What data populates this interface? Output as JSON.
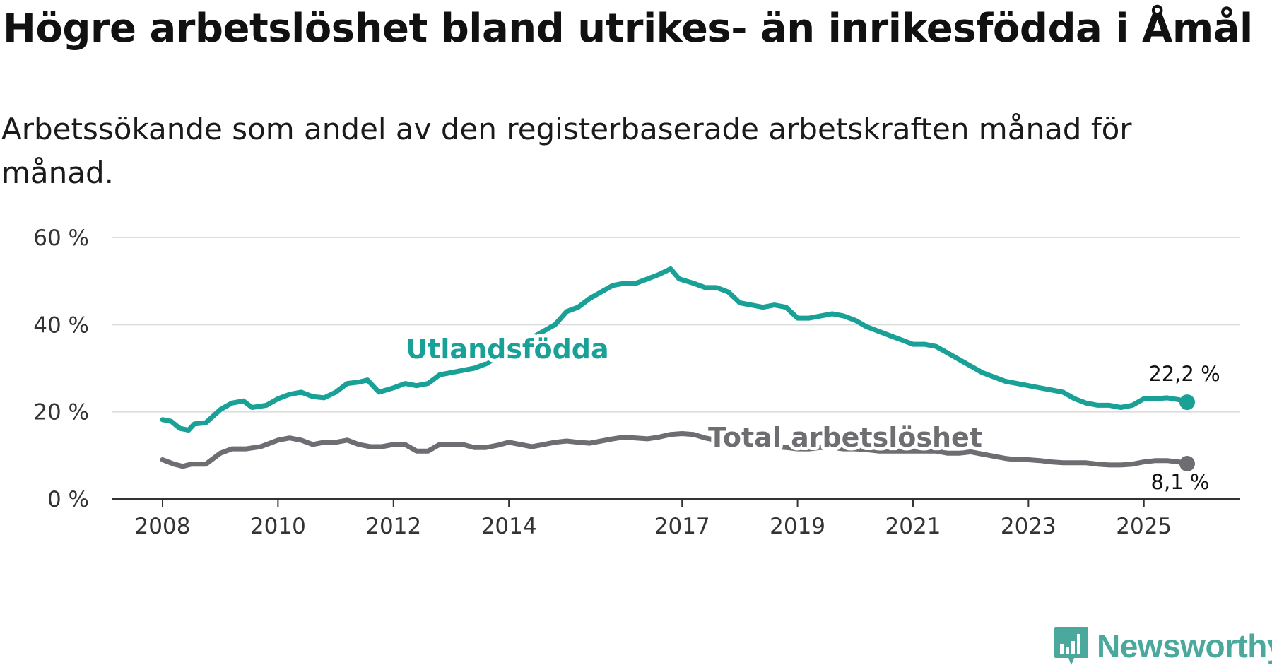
{
  "title": "Högre arbetslöshet bland utrikes- än inrikesfödda i Åmål",
  "subtitle": "Arbetssökande som andel av den registerbaserade arbetskraften månad för månad.",
  "logo": {
    "text": "Newsworthy",
    "icon": "newsworthy-chart-icon"
  },
  "colors": {
    "foreign": "#1aa197",
    "total": "#6e6e72",
    "grid": "#dddddd",
    "axis": "#333333"
  },
  "chart_data": {
    "type": "line",
    "title": "Högre arbetslöshet bland utrikes- än inrikesfödda i Åmål",
    "xlabel": "",
    "ylabel": "",
    "xlim": [
      2007.9,
      2026.5
    ],
    "ylim": [
      0,
      60
    ],
    "grid": true,
    "y_ticks": [
      0,
      20,
      40,
      60
    ],
    "y_tick_labels": [
      "0 %",
      "20 %",
      "40 %",
      "60 %"
    ],
    "x_ticks": [
      2008,
      2010,
      2012,
      2014,
      2017,
      2019,
      2021,
      2023,
      2025
    ],
    "x_tick_labels": [
      "2008",
      "2010",
      "2012",
      "2014",
      "2017",
      "2019",
      "2021",
      "2023",
      "2025"
    ],
    "series": [
      {
        "name": "Utlandsfödda",
        "end_label": "22,2 %",
        "points": [
          [
            2008.0,
            18.2
          ],
          [
            2008.15,
            17.8
          ],
          [
            2008.3,
            16.2
          ],
          [
            2008.45,
            15.8
          ],
          [
            2008.55,
            17.2
          ],
          [
            2008.75,
            17.5
          ],
          [
            2009.0,
            20.5
          ],
          [
            2009.2,
            22.0
          ],
          [
            2009.4,
            22.5
          ],
          [
            2009.55,
            21.0
          ],
          [
            2009.8,
            21.5
          ],
          [
            2010.0,
            23.0
          ],
          [
            2010.2,
            24.0
          ],
          [
            2010.4,
            24.5
          ],
          [
            2010.6,
            23.5
          ],
          [
            2010.8,
            23.2
          ],
          [
            2011.0,
            24.5
          ],
          [
            2011.2,
            26.5
          ],
          [
            2011.4,
            26.8
          ],
          [
            2011.55,
            27.3
          ],
          [
            2011.75,
            24.5
          ],
          [
            2012.0,
            25.5
          ],
          [
            2012.2,
            26.5
          ],
          [
            2012.4,
            26.0
          ],
          [
            2012.6,
            26.5
          ],
          [
            2012.8,
            28.5
          ],
          [
            2013.0,
            29.0
          ],
          [
            2013.2,
            29.5
          ],
          [
            2013.4,
            30.0
          ],
          [
            2013.6,
            31.0
          ],
          [
            2013.8,
            32.5
          ],
          [
            2014.0,
            34.0
          ],
          [
            2014.2,
            35.5
          ],
          [
            2014.4,
            37.0
          ],
          [
            2014.6,
            38.5
          ],
          [
            2014.8,
            40.0
          ],
          [
            2015.0,
            43.0
          ],
          [
            2015.2,
            44.0
          ],
          [
            2015.4,
            46.0
          ],
          [
            2015.6,
            47.5
          ],
          [
            2015.8,
            49.0
          ],
          [
            2016.0,
            49.5
          ],
          [
            2016.2,
            49.5
          ],
          [
            2016.4,
            50.5
          ],
          [
            2016.6,
            51.5
          ],
          [
            2016.8,
            52.8
          ],
          [
            2016.95,
            50.5
          ],
          [
            2017.2,
            49.5
          ],
          [
            2017.4,
            48.5
          ],
          [
            2017.6,
            48.5
          ],
          [
            2017.8,
            47.5
          ],
          [
            2018.0,
            45.0
          ],
          [
            2018.2,
            44.5
          ],
          [
            2018.4,
            44.0
          ],
          [
            2018.6,
            44.5
          ],
          [
            2018.8,
            44.0
          ],
          [
            2019.0,
            41.5
          ],
          [
            2019.2,
            41.5
          ],
          [
            2019.4,
            42.0
          ],
          [
            2019.6,
            42.5
          ],
          [
            2019.8,
            42.0
          ],
          [
            2020.0,
            41.0
          ],
          [
            2020.2,
            39.5
          ],
          [
            2020.4,
            38.5
          ],
          [
            2020.6,
            37.5
          ],
          [
            2020.8,
            36.5
          ],
          [
            2021.0,
            35.5
          ],
          [
            2021.2,
            35.5
          ],
          [
            2021.4,
            35.0
          ],
          [
            2021.6,
            33.5
          ],
          [
            2021.8,
            32.0
          ],
          [
            2022.0,
            30.5
          ],
          [
            2022.2,
            29.0
          ],
          [
            2022.4,
            28.0
          ],
          [
            2022.6,
            27.0
          ],
          [
            2022.8,
            26.5
          ],
          [
            2023.0,
            26.0
          ],
          [
            2023.2,
            25.5
          ],
          [
            2023.4,
            25.0
          ],
          [
            2023.6,
            24.5
          ],
          [
            2023.8,
            23.0
          ],
          [
            2024.0,
            22.0
          ],
          [
            2024.2,
            21.5
          ],
          [
            2024.4,
            21.5
          ],
          [
            2024.6,
            21.0
          ],
          [
            2024.8,
            21.5
          ],
          [
            2025.0,
            23.0
          ],
          [
            2025.2,
            23.0
          ],
          [
            2025.4,
            23.2
          ],
          [
            2025.6,
            22.8
          ],
          [
            2025.75,
            22.2
          ]
        ]
      },
      {
        "name": "Total arbetslöshet",
        "end_label": "8,1 %",
        "points": [
          [
            2008.0,
            9.0
          ],
          [
            2008.2,
            8.0
          ],
          [
            2008.35,
            7.5
          ],
          [
            2008.5,
            8.0
          ],
          [
            2008.75,
            8.0
          ],
          [
            2009.0,
            10.5
          ],
          [
            2009.2,
            11.5
          ],
          [
            2009.45,
            11.5
          ],
          [
            2009.7,
            12.0
          ],
          [
            2010.0,
            13.5
          ],
          [
            2010.2,
            14.0
          ],
          [
            2010.4,
            13.5
          ],
          [
            2010.6,
            12.5
          ],
          [
            2010.8,
            13.0
          ],
          [
            2011.0,
            13.0
          ],
          [
            2011.2,
            13.5
          ],
          [
            2011.4,
            12.5
          ],
          [
            2011.6,
            12.0
          ],
          [
            2011.8,
            12.0
          ],
          [
            2012.0,
            12.5
          ],
          [
            2012.2,
            12.5
          ],
          [
            2012.4,
            11.0
          ],
          [
            2012.6,
            11.0
          ],
          [
            2012.8,
            12.5
          ],
          [
            2013.0,
            12.5
          ],
          [
            2013.2,
            12.5
          ],
          [
            2013.4,
            11.8
          ],
          [
            2013.6,
            11.8
          ],
          [
            2013.8,
            12.3
          ],
          [
            2014.0,
            13.0
          ],
          [
            2014.2,
            12.5
          ],
          [
            2014.4,
            12.0
          ],
          [
            2014.6,
            12.5
          ],
          [
            2014.8,
            13.0
          ],
          [
            2015.0,
            13.3
          ],
          [
            2015.2,
            13.0
          ],
          [
            2015.4,
            12.8
          ],
          [
            2015.6,
            13.3
          ],
          [
            2015.8,
            13.8
          ],
          [
            2016.0,
            14.2
          ],
          [
            2016.2,
            14.0
          ],
          [
            2016.4,
            13.8
          ],
          [
            2016.6,
            14.2
          ],
          [
            2016.8,
            14.8
          ],
          [
            2017.0,
            15.0
          ],
          [
            2017.2,
            14.8
          ],
          [
            2017.4,
            14.0
          ],
          [
            2017.6,
            13.5
          ],
          [
            2017.8,
            13.0
          ],
          [
            2018.0,
            12.5
          ],
          [
            2018.2,
            12.3
          ],
          [
            2018.4,
            12.0
          ],
          [
            2018.6,
            12.0
          ],
          [
            2018.8,
            11.8
          ],
          [
            2019.0,
            11.5
          ],
          [
            2019.2,
            11.5
          ],
          [
            2019.4,
            11.8
          ],
          [
            2019.6,
            11.8
          ],
          [
            2019.8,
            11.5
          ],
          [
            2020.0,
            11.5
          ],
          [
            2020.2,
            11.3
          ],
          [
            2020.4,
            11.0
          ],
          [
            2020.6,
            11.0
          ],
          [
            2020.8,
            11.0
          ],
          [
            2021.0,
            11.0
          ],
          [
            2021.2,
            11.0
          ],
          [
            2021.4,
            11.0
          ],
          [
            2021.6,
            10.5
          ],
          [
            2021.8,
            10.5
          ],
          [
            2022.0,
            10.8
          ],
          [
            2022.2,
            10.3
          ],
          [
            2022.4,
            9.8
          ],
          [
            2022.6,
            9.3
          ],
          [
            2022.8,
            9.0
          ],
          [
            2023.0,
            9.0
          ],
          [
            2023.2,
            8.8
          ],
          [
            2023.4,
            8.5
          ],
          [
            2023.6,
            8.3
          ],
          [
            2023.8,
            8.3
          ],
          [
            2024.0,
            8.3
          ],
          [
            2024.2,
            8.0
          ],
          [
            2024.4,
            7.8
          ],
          [
            2024.6,
            7.8
          ],
          [
            2024.8,
            8.0
          ],
          [
            2025.0,
            8.5
          ],
          [
            2025.2,
            8.8
          ],
          [
            2025.4,
            8.8
          ],
          [
            2025.6,
            8.5
          ],
          [
            2025.75,
            8.1
          ]
        ]
      }
    ]
  }
}
